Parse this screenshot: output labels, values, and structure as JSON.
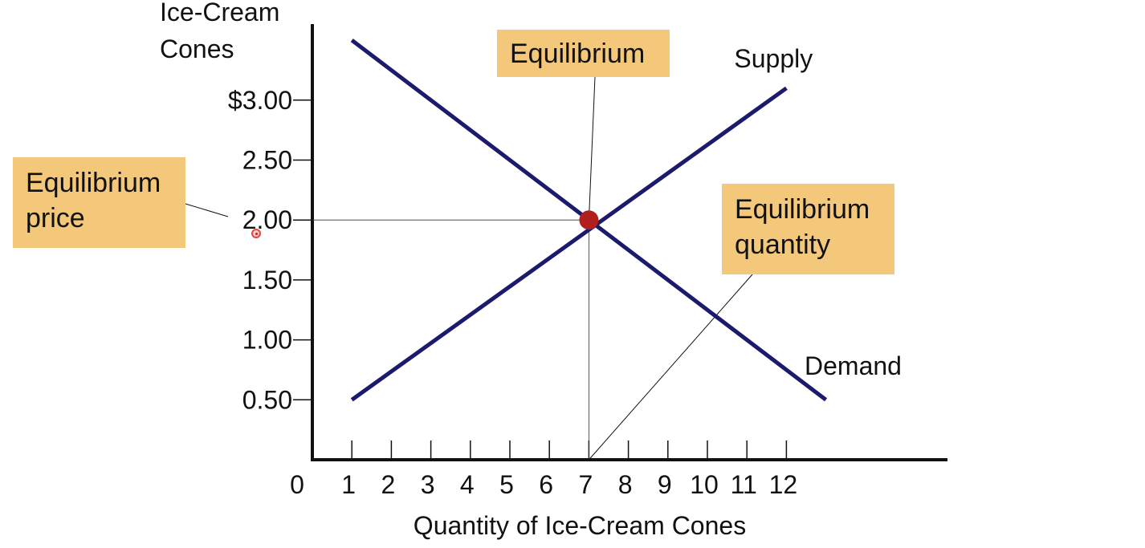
{
  "chart_data": {
    "type": "line",
    "y_axis_title": [
      "Ice-Cream",
      "Cones"
    ],
    "xlabel": "Quantity of Ice-Cream Cones",
    "x_ticks": [
      "1",
      "2",
      "3",
      "4",
      "5",
      "6",
      "7",
      "8",
      "9",
      "10",
      "11",
      "12"
    ],
    "x_origin_label": "0",
    "y_ticks": [
      {
        "value": 3.0,
        "label": "$3.00"
      },
      {
        "value": 2.5,
        "label": "2.50"
      },
      {
        "value": 2.0,
        "label": "2.00"
      },
      {
        "value": 1.5,
        "label": "1.50"
      },
      {
        "value": 1.0,
        "label": "1.00"
      },
      {
        "value": 0.5,
        "label": "0.50"
      }
    ],
    "ylim": [
      0,
      3.5
    ],
    "xlim": [
      0,
      15
    ],
    "series": [
      {
        "name": "Supply",
        "points": [
          [
            1,
            0.5
          ],
          [
            12,
            3.1
          ]
        ]
      },
      {
        "name": "Demand",
        "points": [
          [
            1,
            3.5
          ],
          [
            13,
            0.5
          ]
        ]
      }
    ],
    "equilibrium": {
      "x": 7,
      "y": 2.0
    },
    "annotations": {
      "equilibrium": "Equilibrium",
      "price": [
        "Equilibrium",
        "price"
      ],
      "quantity": [
        "Equilibrium",
        "quantity"
      ]
    },
    "colors": {
      "lines": "#1b1a6c",
      "point": "#b01e1e",
      "callout_bg": "#f4c87a",
      "axis": "#111111"
    }
  }
}
